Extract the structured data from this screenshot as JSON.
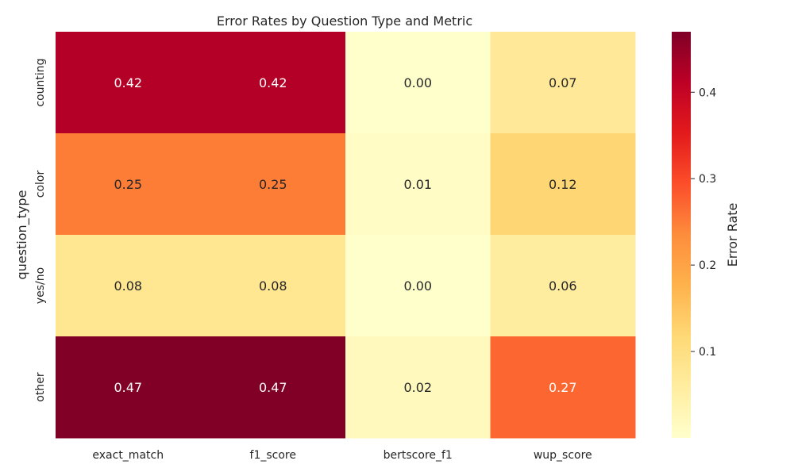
{
  "chart_data": {
    "type": "heatmap",
    "title": "Error Rates by Question Type and Metric",
    "xlabel": "",
    "ylabel": "question_type",
    "columns": [
      "exact_match",
      "f1_score",
      "bertscore_f1",
      "wup_score"
    ],
    "rows": [
      "counting",
      "color",
      "yes/no",
      "other"
    ],
    "values": [
      [
        0.42,
        0.42,
        0.0,
        0.07
      ],
      [
        0.25,
        0.25,
        0.01,
        0.12
      ],
      [
        0.08,
        0.08,
        0.0,
        0.06
      ],
      [
        0.47,
        0.47,
        0.02,
        0.27
      ]
    ],
    "value_format": "0.00",
    "colormap": "YlOrRd",
    "colormap_stops": [
      "#ffffcc",
      "#ffeda0",
      "#fed976",
      "#feb24c",
      "#fd8d3c",
      "#fc4e2a",
      "#e31a1c",
      "#bd0026",
      "#800026"
    ],
    "vmin": 0.0,
    "vmax": 0.47,
    "colorbar": {
      "label": "Error Rate",
      "ticks": [
        0.1,
        0.2,
        0.3,
        0.4
      ],
      "tick_labels": [
        "0.1",
        "0.2",
        "0.3",
        "0.4"
      ]
    },
    "annotation_colors": {
      "light": "#ffffff",
      "dark": "#262626"
    },
    "grid": false
  }
}
